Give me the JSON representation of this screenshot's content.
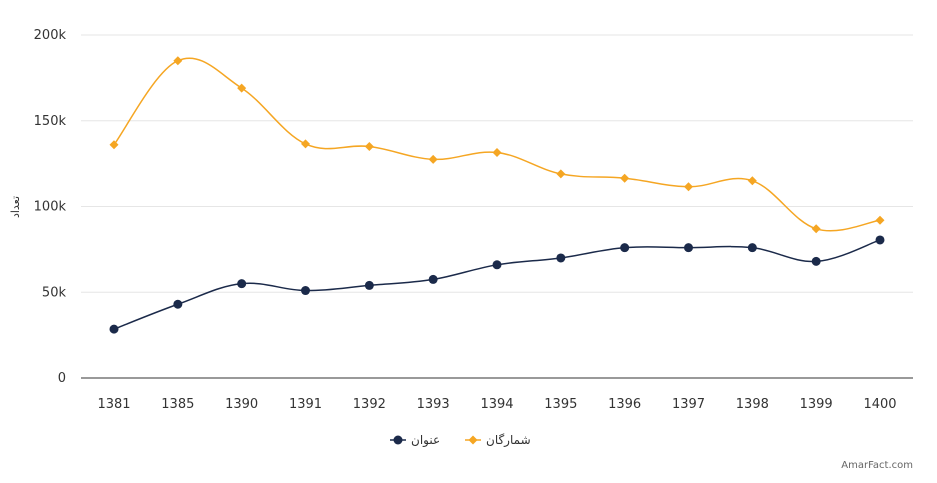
{
  "chart_data": {
    "type": "line",
    "categories": [
      "1381",
      "1385",
      "1390",
      "1391",
      "1392",
      "1393",
      "1394",
      "1395",
      "1396",
      "1397",
      "1398",
      "1399",
      "1400"
    ],
    "ylabel": "تعداد",
    "ylim": [
      0,
      200000
    ],
    "yticks": [
      0,
      50000,
      100000,
      150000,
      200000
    ],
    "ytick_labels": [
      "0",
      "50k",
      "100k",
      "150k",
      "200k"
    ],
    "grid": true,
    "legend_position": "bottom-center",
    "series": [
      {
        "name": "عنوان",
        "color": "#1b2a4a",
        "marker": "circle",
        "values": [
          28500,
          43000,
          55000,
          51000,
          54000,
          57500,
          66000,
          70000,
          76000,
          76000,
          76000,
          68000,
          80500
        ]
      },
      {
        "name": "شمارگان",
        "color": "#f5a623",
        "marker": "diamond",
        "values": [
          136000,
          185000,
          169000,
          136500,
          135000,
          127500,
          131500,
          119000,
          116500,
          111500,
          115000,
          87000,
          92000
        ]
      }
    ]
  },
  "credit": "AmarFact.com"
}
